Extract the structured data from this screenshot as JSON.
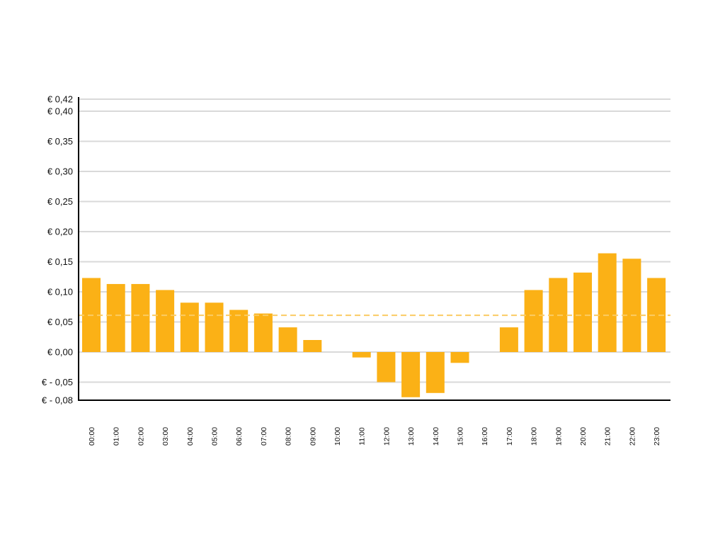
{
  "chart_data": {
    "type": "bar",
    "title": "",
    "xlabel": "",
    "ylabel": "",
    "categories": [
      "00:00",
      "01:00",
      "02:00",
      "03:00",
      "04:00",
      "05:00",
      "06:00",
      "07:00",
      "08:00",
      "09:00",
      "10:00",
      "11:00",
      "12:00",
      "13:00",
      "14:00",
      "15:00",
      "16:00",
      "17:00",
      "18:00",
      "19:00",
      "20:00",
      "21:00",
      "22:00",
      "23:00"
    ],
    "values": [
      0.123,
      0.113,
      0.113,
      0.103,
      0.082,
      0.082,
      0.07,
      0.064,
      0.041,
      0.02,
      0.0,
      -0.009,
      -0.05,
      -0.075,
      -0.068,
      -0.018,
      0.0,
      0.041,
      0.103,
      0.123,
      0.132,
      0.164,
      0.155,
      0.123
    ],
    "ylim": [
      -0.08,
      0.42
    ],
    "yticks": [
      -0.08,
      -0.05,
      0.0,
      0.05,
      0.1,
      0.15,
      0.2,
      0.25,
      0.3,
      0.35,
      0.4,
      0.42
    ],
    "ytick_labels": [
      "€ - 0,08",
      "€ - 0,05",
      "€ 0,00",
      "€ 0,05",
      "€ 0,10",
      "€ 0,15",
      "€ 0,20",
      "€ 0,25",
      "€ 0,30",
      "€ 0,35",
      "€ 0,40",
      "€ 0,42"
    ],
    "reference_line": {
      "value": 0.061,
      "style": "dashed"
    },
    "grid": true,
    "colors": {
      "bar": "#FBB116",
      "reference_line": "#FBCB63",
      "grid": "#D9D9D9",
      "axis": "#000000"
    }
  }
}
